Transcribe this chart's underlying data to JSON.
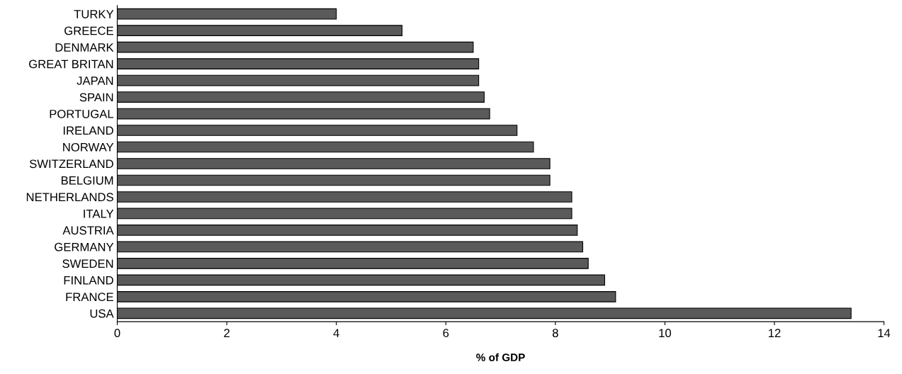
{
  "chart_data": {
    "type": "bar",
    "orientation": "horizontal",
    "xlabel": "% of GDP",
    "categories": [
      "TURKY",
      "GREECE",
      "DENMARK",
      "GREAT BRITAN",
      "JAPAN",
      "SPAIN",
      "PORTUGAL",
      "IRELAND",
      "NORWAY",
      "SWITZERLAND",
      "BELGIUM",
      "NETHERLANDS",
      "ITALY",
      "AUSTRIA",
      "GERMANY",
      "SWEDEN",
      "FINLAND",
      "FRANCE",
      "USA"
    ],
    "values": [
      4.0,
      5.2,
      6.5,
      6.6,
      6.6,
      6.7,
      6.8,
      7.3,
      7.6,
      7.9,
      7.9,
      8.3,
      8.3,
      8.4,
      8.5,
      8.6,
      8.9,
      9.1,
      13.4
    ],
    "color": "#5a5a5a",
    "xlim": [
      0,
      14
    ],
    "xticks": [
      0,
      2,
      4,
      6,
      8,
      10,
      12,
      14
    ],
    "grid": false
  }
}
